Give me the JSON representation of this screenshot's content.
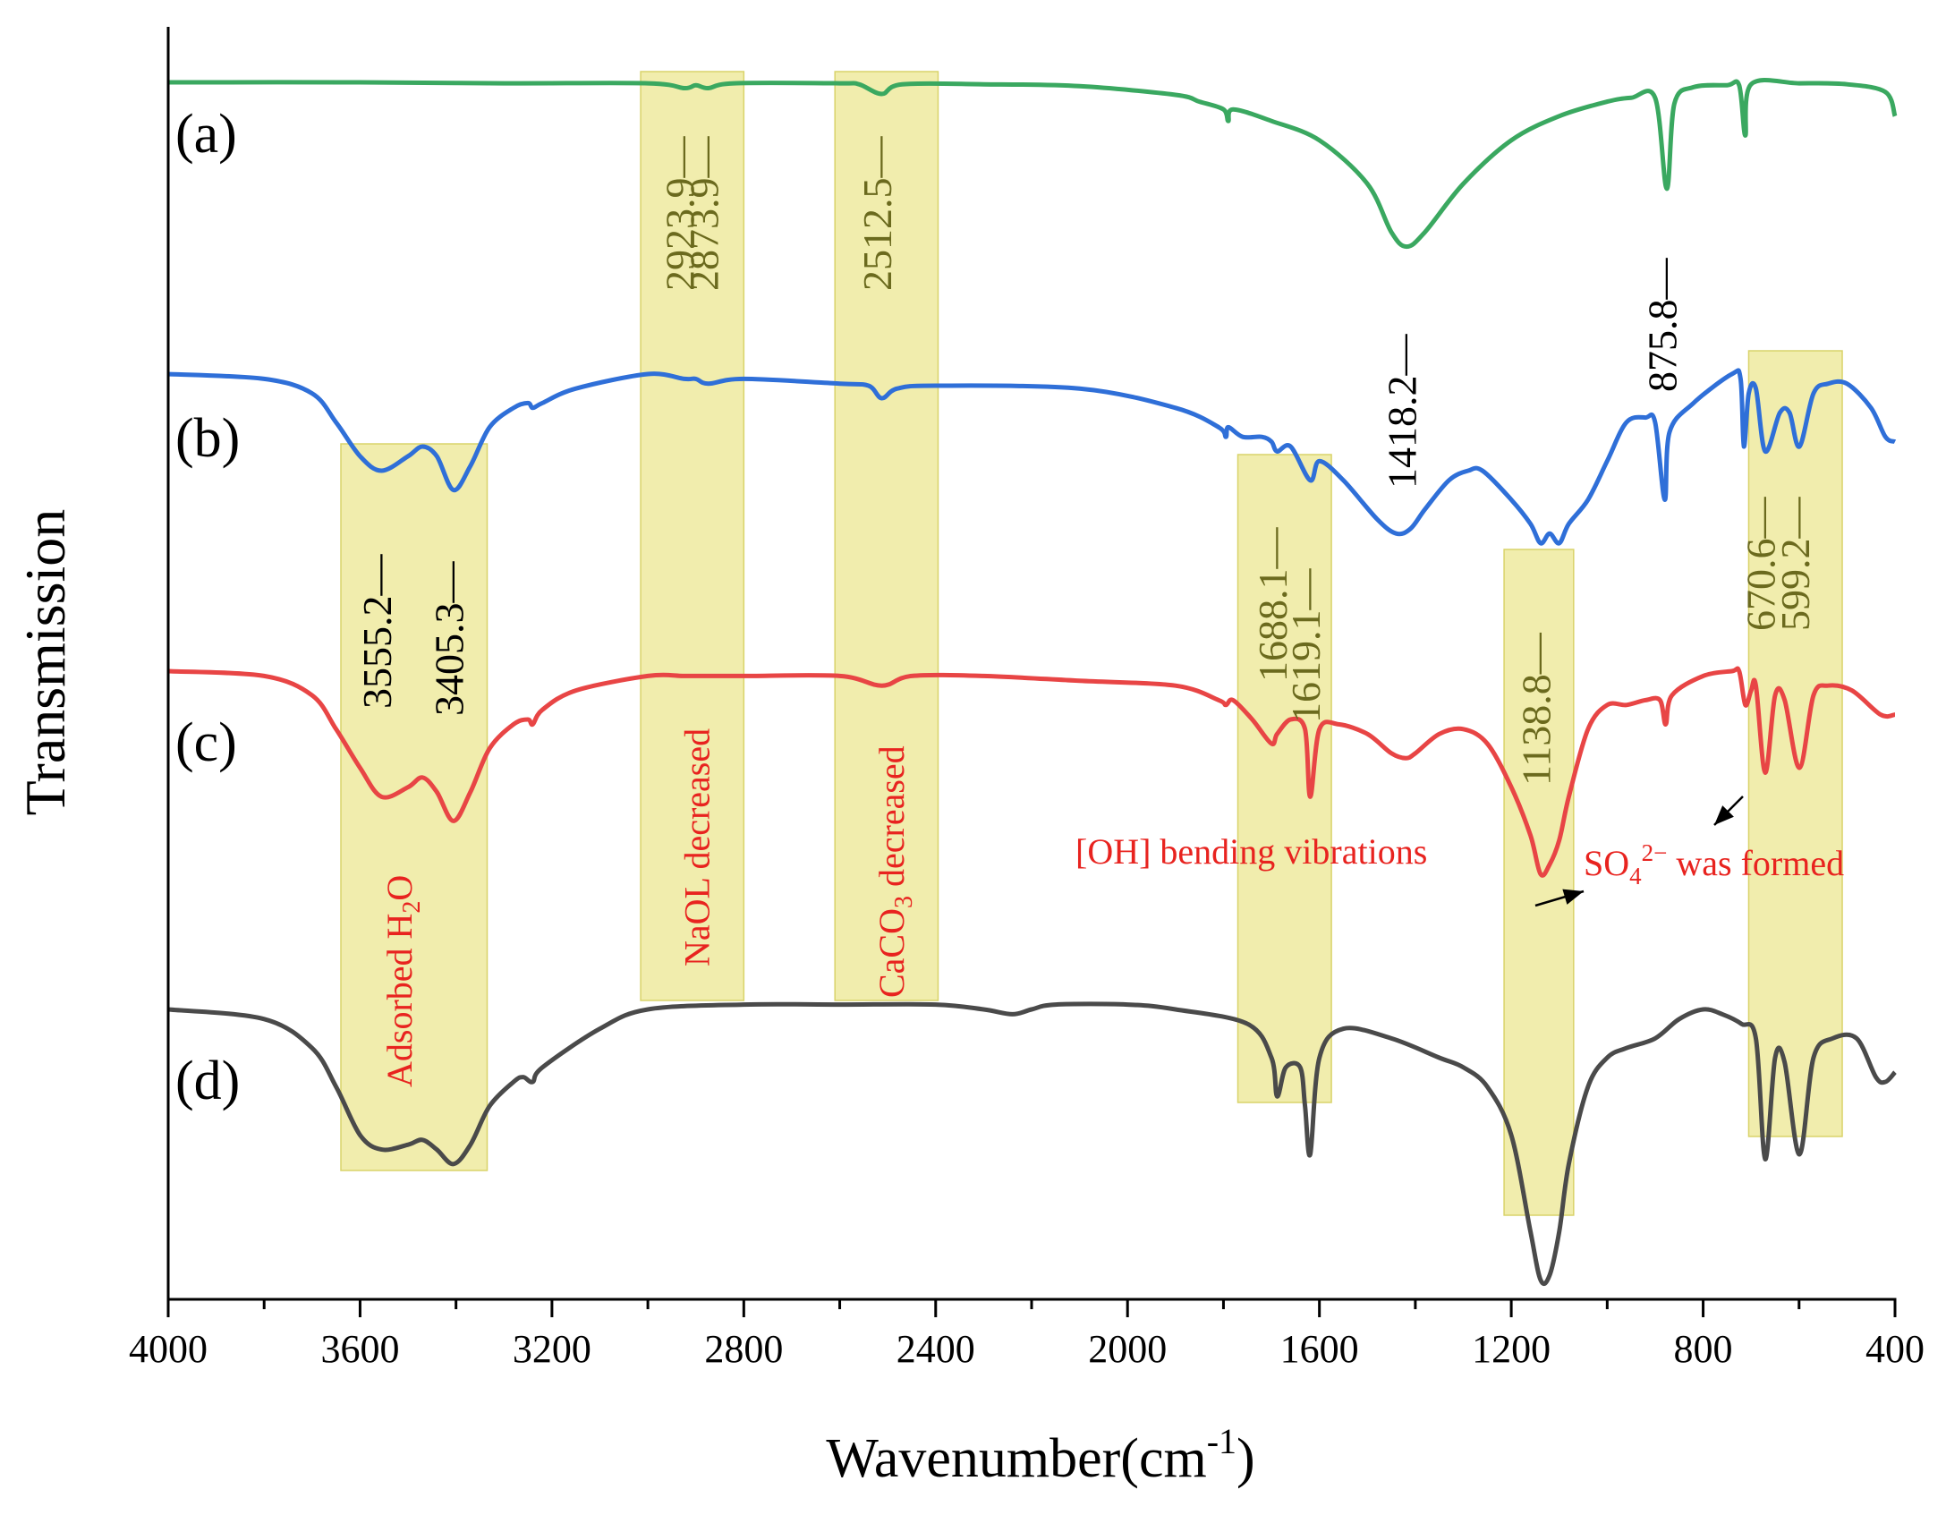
{
  "chart_data": {
    "type": "line",
    "title": "",
    "xlabel": "Wavenumber(cm",
    "xlabel_sup": "-1",
    "xlabel_close": ")",
    "ylabel": "Transmission",
    "xlim": [
      4000,
      400
    ],
    "x_reversed": true,
    "x_ticks": [
      4000,
      3600,
      3200,
      2800,
      2400,
      2000,
      1600,
      1200,
      800,
      400
    ],
    "x_tick_labels": [
      "4000",
      "3600",
      "3200",
      "2800",
      "2400",
      "2000",
      "1600",
      "1200",
      "800",
      "400"
    ],
    "y_ticks_shown": false,
    "grid": false,
    "legend": "curve letters at left",
    "series": [
      {
        "name": "(a)",
        "color": "#3aa860",
        "offset": 0,
        "points": [
          [
            4000,
            0
          ],
          [
            3600,
            0
          ],
          [
            3300,
            0.01
          ],
          [
            3000,
            0.01
          ],
          [
            2923.9,
            0.06
          ],
          [
            2900,
            0.03
          ],
          [
            2873.9,
            0.06
          ],
          [
            2820,
            0.01
          ],
          [
            2600,
            0.01
          ],
          [
            2560,
            0.02
          ],
          [
            2512.5,
            0.12
          ],
          [
            2470,
            0.02
          ],
          [
            2300,
            0.02
          ],
          [
            2100,
            0.04
          ],
          [
            1900,
            0.13
          ],
          [
            1850,
            0.2
          ],
          [
            1800,
            0.28
          ],
          [
            1790,
            0.4
          ],
          [
            1780,
            0.28
          ],
          [
            1700,
            0.4
          ],
          [
            1600,
            0.6
          ],
          [
            1500,
            1.05
          ],
          [
            1450,
            1.55
          ],
          [
            1418.2,
            1.7
          ],
          [
            1380,
            1.55
          ],
          [
            1300,
            1.05
          ],
          [
            1200,
            0.6
          ],
          [
            1100,
            0.35
          ],
          [
            1000,
            0.2
          ],
          [
            950,
            0.16
          ],
          [
            900,
            0.16
          ],
          [
            875.8,
            1.1
          ],
          [
            860,
            0.22
          ],
          [
            820,
            0.05
          ],
          [
            750,
            0.03
          ],
          [
            725,
            0.03
          ],
          [
            712,
            0.55
          ],
          [
            700,
            0.02
          ],
          [
            600,
            0.01
          ],
          [
            500,
            0.02
          ],
          [
            420,
            0.1
          ],
          [
            400,
            0.35
          ]
        ]
      },
      {
        "name": "(b)",
        "color": "#2f6fd8",
        "offset": 1,
        "points": [
          [
            4000,
            0
          ],
          [
            3800,
            0.05
          ],
          [
            3700,
            0.2
          ],
          [
            3650,
            0.5
          ],
          [
            3600,
            0.85
          ],
          [
            3555.2,
            1.0
          ],
          [
            3500,
            0.85
          ],
          [
            3470,
            0.75
          ],
          [
            3440,
            0.85
          ],
          [
            3405.3,
            1.2
          ],
          [
            3370,
            0.95
          ],
          [
            3330,
            0.55
          ],
          [
            3280,
            0.35
          ],
          [
            3250,
            0.3
          ],
          [
            3240,
            0.35
          ],
          [
            3220,
            0.3
          ],
          [
            3150,
            0.15
          ],
          [
            3000,
            0.0
          ],
          [
            2923.9,
            0.05
          ],
          [
            2900,
            0.05
          ],
          [
            2873.9,
            0.1
          ],
          [
            2800,
            0.05
          ],
          [
            2600,
            0.1
          ],
          [
            2540,
            0.12
          ],
          [
            2512.5,
            0.25
          ],
          [
            2480,
            0.15
          ],
          [
            2400,
            0.12
          ],
          [
            2100,
            0.15
          ],
          [
            1900,
            0.35
          ],
          [
            1810,
            0.55
          ],
          [
            1795,
            0.65
          ],
          [
            1790,
            0.55
          ],
          [
            1760,
            0.65
          ],
          [
            1720,
            0.65
          ],
          [
            1700,
            0.7
          ],
          [
            1688.1,
            0.8
          ],
          [
            1660,
            0.75
          ],
          [
            1619.1,
            1.1
          ],
          [
            1600,
            0.9
          ],
          [
            1550,
            1.1
          ],
          [
            1480,
            1.5
          ],
          [
            1440,
            1.65
          ],
          [
            1410,
            1.6
          ],
          [
            1380,
            1.4
          ],
          [
            1330,
            1.1
          ],
          [
            1290,
            1.0
          ],
          [
            1260,
            1.0
          ],
          [
            1200,
            1.3
          ],
          [
            1160,
            1.55
          ],
          [
            1138.8,
            1.75
          ],
          [
            1120,
            1.65
          ],
          [
            1100,
            1.75
          ],
          [
            1080,
            1.55
          ],
          [
            1040,
            1.3
          ],
          [
            1000,
            0.9
          ],
          [
            960,
            0.5
          ],
          [
            920,
            0.45
          ],
          [
            900,
            0.5
          ],
          [
            880,
            1.3
          ],
          [
            870,
            0.6
          ],
          [
            820,
            0.3
          ],
          [
            740,
            0.0
          ],
          [
            722,
            0.05
          ],
          [
            715,
            0.75
          ],
          [
            705,
            0.2
          ],
          [
            690,
            0.15
          ],
          [
            670.6,
            0.8
          ],
          [
            640,
            0.4
          ],
          [
            620,
            0.4
          ],
          [
            599.2,
            0.75
          ],
          [
            570,
            0.2
          ],
          [
            540,
            0.1
          ],
          [
            500,
            0.1
          ],
          [
            450,
            0.35
          ],
          [
            420,
            0.65
          ],
          [
            400,
            0.7
          ]
        ]
      },
      {
        "name": "(c)",
        "color": "#e84545",
        "offset": 2,
        "points": [
          [
            4000,
            0
          ],
          [
            3800,
            0.05
          ],
          [
            3700,
            0.25
          ],
          [
            3650,
            0.6
          ],
          [
            3600,
            1.0
          ],
          [
            3555.2,
            1.3
          ],
          [
            3500,
            1.2
          ],
          [
            3470,
            1.1
          ],
          [
            3440,
            1.25
          ],
          [
            3405.3,
            1.55
          ],
          [
            3370,
            1.25
          ],
          [
            3330,
            0.8
          ],
          [
            3280,
            0.55
          ],
          [
            3250,
            0.5
          ],
          [
            3240,
            0.55
          ],
          [
            3220,
            0.4
          ],
          [
            3150,
            0.2
          ],
          [
            3000,
            0.05
          ],
          [
            2923.9,
            0.05
          ],
          [
            2873.9,
            0.05
          ],
          [
            2800,
            0.05
          ],
          [
            2600,
            0.05
          ],
          [
            2512.5,
            0.15
          ],
          [
            2450,
            0.05
          ],
          [
            2300,
            0.05
          ],
          [
            2100,
            0.1
          ],
          [
            1900,
            0.15
          ],
          [
            1810,
            0.3
          ],
          [
            1795,
            0.35
          ],
          [
            1780,
            0.3
          ],
          [
            1740,
            0.5
          ],
          [
            1700,
            0.75
          ],
          [
            1688.1,
            0.65
          ],
          [
            1660,
            0.5
          ],
          [
            1630,
            0.6
          ],
          [
            1619.1,
            1.3
          ],
          [
            1600,
            0.6
          ],
          [
            1560,
            0.55
          ],
          [
            1500,
            0.65
          ],
          [
            1450,
            0.85
          ],
          [
            1420,
            0.9
          ],
          [
            1400,
            0.85
          ],
          [
            1350,
            0.65
          ],
          [
            1300,
            0.6
          ],
          [
            1250,
            0.75
          ],
          [
            1200,
            1.2
          ],
          [
            1160,
            1.7
          ],
          [
            1138.8,
            2.1
          ],
          [
            1120,
            2.0
          ],
          [
            1100,
            1.75
          ],
          [
            1080,
            1.3
          ],
          [
            1040,
            0.6
          ],
          [
            1000,
            0.35
          ],
          [
            960,
            0.35
          ],
          [
            920,
            0.3
          ],
          [
            890,
            0.3
          ],
          [
            878,
            0.55
          ],
          [
            865,
            0.25
          ],
          [
            800,
            0.05
          ],
          [
            740,
            0.0
          ],
          [
            725,
            0.0
          ],
          [
            712,
            0.35
          ],
          [
            700,
            0.2
          ],
          [
            690,
            0.15
          ],
          [
            670.6,
            1.05
          ],
          [
            650,
            0.25
          ],
          [
            630,
            0.3
          ],
          [
            599.2,
            1.0
          ],
          [
            570,
            0.25
          ],
          [
            540,
            0.15
          ],
          [
            490,
            0.2
          ],
          [
            430,
            0.45
          ],
          [
            400,
            0.45
          ]
        ]
      },
      {
        "name": "(d)",
        "color": "#4a4a4a",
        "offset": 3,
        "points": [
          [
            4000,
            0
          ],
          [
            3800,
            0.1
          ],
          [
            3700,
            0.4
          ],
          [
            3650,
            0.8
          ],
          [
            3600,
            1.3
          ],
          [
            3555.2,
            1.45
          ],
          [
            3500,
            1.4
          ],
          [
            3470,
            1.35
          ],
          [
            3440,
            1.45
          ],
          [
            3405.3,
            1.6
          ],
          [
            3370,
            1.4
          ],
          [
            3330,
            1.0
          ],
          [
            3280,
            0.75
          ],
          [
            3260,
            0.7
          ],
          [
            3240,
            0.75
          ],
          [
            3220,
            0.6
          ],
          [
            3100,
            0.2
          ],
          [
            3000,
            0.0
          ],
          [
            2800,
            -0.05
          ],
          [
            2600,
            -0.05
          ],
          [
            2400,
            -0.05
          ],
          [
            2300,
            0.0
          ],
          [
            2240,
            0.05
          ],
          [
            2200,
            0.0
          ],
          [
            2150,
            -0.05
          ],
          [
            2000,
            -0.05
          ],
          [
            1900,
            0.0
          ],
          [
            1750,
            0.15
          ],
          [
            1700,
            0.5
          ],
          [
            1688.1,
            0.9
          ],
          [
            1670,
            0.6
          ],
          [
            1640,
            0.6
          ],
          [
            1630,
            1.0
          ],
          [
            1619.1,
            1.5
          ],
          [
            1600,
            0.5
          ],
          [
            1550,
            0.2
          ],
          [
            1450,
            0.3
          ],
          [
            1350,
            0.5
          ],
          [
            1300,
            0.6
          ],
          [
            1250,
            0.8
          ],
          [
            1200,
            1.3
          ],
          [
            1160,
            2.3
          ],
          [
            1138.8,
            2.8
          ],
          [
            1120,
            2.75
          ],
          [
            1100,
            2.3
          ],
          [
            1080,
            1.6
          ],
          [
            1040,
            0.8
          ],
          [
            1000,
            0.5
          ],
          [
            960,
            0.4
          ],
          [
            900,
            0.3
          ],
          [
            850,
            0.1
          ],
          [
            800,
            0.0
          ],
          [
            760,
            0.05
          ],
          [
            720,
            0.15
          ],
          [
            690,
            0.3
          ],
          [
            670.6,
            1.55
          ],
          [
            650,
            0.5
          ],
          [
            630,
            0.55
          ],
          [
            599.2,
            1.5
          ],
          [
            570,
            0.5
          ],
          [
            530,
            0.3
          ],
          [
            480,
            0.3
          ],
          [
            440,
            0.7
          ],
          [
            420,
            0.75
          ],
          [
            400,
            0.65
          ]
        ]
      }
    ],
    "highlight_bands": [
      {
        "x": [
          3640,
          3335
        ],
        "curves": "b-d",
        "label": "Adsorbed H",
        "label_sub": "2",
        "label_tail": "O"
      },
      {
        "x": [
          3015,
          2800
        ],
        "curves": "a-c",
        "label": "NaOL decreased",
        "label_sub": "",
        "label_tail": ""
      },
      {
        "x": [
          2610,
          2395
        ],
        "curves": "a-c",
        "label": "CaCO",
        "label_sub": "3",
        "label_tail": " decreased"
      },
      {
        "x": [
          1770,
          1575
        ],
        "curves": "b-d",
        "label": "",
        "label_sub": "",
        "label_tail": ""
      },
      {
        "x": [
          1215,
          1070
        ],
        "curves": "b-d",
        "label": "",
        "label_sub": "",
        "label_tail": ""
      },
      {
        "x": [
          705,
          510
        ],
        "curves": "a-d",
        "label": "",
        "label_sub": "",
        "label_tail": ""
      }
    ],
    "peak_labels": [
      {
        "text": "2923.9",
        "x": 2923.9,
        "curve": "a"
      },
      {
        "text": "2873.9",
        "x": 2873.9,
        "curve": "a"
      },
      {
        "text": "2512.5",
        "x": 2512.5,
        "curve": "a"
      },
      {
        "text": "1418.2",
        "x": 1418.2,
        "curve": "a"
      },
      {
        "text": "875.8",
        "x": 875.8,
        "curve": "a"
      },
      {
        "text": "3555.2",
        "x": 3555.2,
        "curve": "b"
      },
      {
        "text": "3405.3",
        "x": 3405.3,
        "curve": "b"
      },
      {
        "text": "1688.1",
        "x": 1688.1,
        "curve": "b"
      },
      {
        "text": "1619.1",
        "x": 1619.1,
        "curve": "b"
      },
      {
        "text": "1138.8",
        "x": 1138.8,
        "curve": "b"
      },
      {
        "text": "670.6",
        "x": 670.6,
        "curve": "b"
      },
      {
        "text": "599.2",
        "x": 599.2,
        "curve": "b"
      }
    ],
    "annotations": [
      {
        "text": "[OH] bending vibrations",
        "sub": "",
        "sup": "",
        "tail": ""
      },
      {
        "text": "SO",
        "sub": "4",
        "sup": "2−",
        "tail": " was formed"
      }
    ],
    "colors": {
      "highlight": "#e8e27a",
      "highlight_text": "#6b6a1e",
      "annotation_red": "#e8231f",
      "axis": "#000000"
    }
  }
}
